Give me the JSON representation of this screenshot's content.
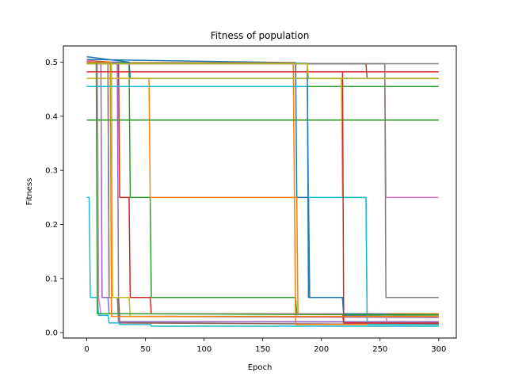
{
  "chart_data": {
    "type": "line",
    "title": "Fitness of population",
    "xlabel": "Epoch",
    "ylabel": "Fitness",
    "xlim": [
      -20,
      315
    ],
    "ylim": [
      -0.01,
      0.53
    ],
    "xticks": [
      0,
      50,
      100,
      150,
      200,
      250,
      300
    ],
    "yticks": [
      0.0,
      0.1,
      0.2,
      0.3,
      0.4,
      0.5
    ],
    "ytick_labels": [
      "0.0",
      "0.1",
      "0.2",
      "0.3",
      "0.4",
      "0.5"
    ],
    "grid": false,
    "legend": "none",
    "series": [
      {
        "color": "#1f77b4",
        "points": [
          [
            0,
            0.505
          ],
          [
            178,
            0.499
          ],
          [
            179,
            0.25
          ],
          [
            189,
            0.25
          ],
          [
            190,
            0.065
          ],
          [
            218,
            0.065
          ],
          [
            219,
            0.032
          ],
          [
            300,
            0.03
          ]
        ]
      },
      {
        "color": "#ff7f0e",
        "points": [
          [
            0,
            0.499
          ],
          [
            176,
            0.499
          ],
          [
            177,
            0.25
          ],
          [
            179,
            0.25
          ],
          [
            180,
            0.035
          ],
          [
            300,
            0.035
          ]
        ]
      },
      {
        "color": "#2ca02c",
        "points": [
          [
            0,
            0.5
          ],
          [
            36,
            0.499
          ],
          [
            37,
            0.25
          ],
          [
            54,
            0.25
          ],
          [
            55,
            0.065
          ],
          [
            178,
            0.065
          ],
          [
            179,
            0.035
          ],
          [
            300,
            0.033
          ]
        ]
      },
      {
        "color": "#d62728",
        "points": [
          [
            0,
            0.503
          ],
          [
            27,
            0.499
          ],
          [
            28,
            0.25
          ],
          [
            36,
            0.25
          ],
          [
            37,
            0.065
          ],
          [
            54,
            0.065
          ],
          [
            55,
            0.035
          ],
          [
            218,
            0.035
          ],
          [
            219,
            0.018
          ],
          [
            300,
            0.018
          ]
        ]
      },
      {
        "color": "#9467bd",
        "points": [
          [
            0,
            0.5
          ],
          [
            26,
            0.5
          ],
          [
            27,
            0.065
          ],
          [
            28,
            0.03
          ],
          [
            300,
            0.028
          ]
        ]
      },
      {
        "color": "#8c564b",
        "points": [
          [
            0,
            0.502
          ],
          [
            18,
            0.5
          ],
          [
            19,
            0.065
          ],
          [
            27,
            0.065
          ],
          [
            28,
            0.018
          ],
          [
            300,
            0.015
          ]
        ]
      },
      {
        "color": "#e377c2",
        "points": [
          [
            0,
            0.503
          ],
          [
            9,
            0.5
          ],
          [
            10,
            0.065
          ],
          [
            12,
            0.035
          ],
          [
            255,
            0.035
          ],
          [
            256,
            0.015
          ],
          [
            300,
            0.015
          ]
        ]
      },
      {
        "color": "#7f7f7f",
        "points": [
          [
            0,
            0.5
          ],
          [
            18,
            0.497
          ],
          [
            19,
            0.065
          ],
          [
            26,
            0.065
          ],
          [
            27,
            0.02
          ],
          [
            300,
            0.02
          ]
        ]
      },
      {
        "color": "#bcbd22",
        "points": [
          [
            0,
            0.499
          ],
          [
            21,
            0.499
          ],
          [
            22,
            0.065
          ],
          [
            36,
            0.065
          ],
          [
            37,
            0.03
          ],
          [
            300,
            0.03
          ]
        ]
      },
      {
        "color": "#17becf",
        "points": [
          [
            0,
            0.25
          ],
          [
            2,
            0.25
          ],
          [
            3,
            0.065
          ],
          [
            9,
            0.065
          ],
          [
            10,
            0.032
          ],
          [
            18,
            0.032
          ],
          [
            19,
            0.018
          ],
          [
            27,
            0.018
          ],
          [
            28,
            0.015
          ],
          [
            54,
            0.015
          ],
          [
            55,
            0.012
          ],
          [
            300,
            0.012
          ]
        ]
      },
      {
        "color": "#1f77b4",
        "points": [
          [
            0,
            0.51
          ],
          [
            36,
            0.5
          ],
          [
            37,
            0.47
          ],
          [
            300,
            0.47
          ]
        ]
      },
      {
        "color": "#ff7f0e",
        "points": [
          [
            0,
            0.47
          ],
          [
            53,
            0.47
          ],
          [
            54,
            0.25
          ],
          [
            177,
            0.25
          ],
          [
            178,
            0.015
          ],
          [
            300,
            0.015
          ]
        ]
      },
      {
        "color": "#2ca02c",
        "points": [
          [
            0,
            0.455
          ],
          [
            300,
            0.455
          ]
        ]
      },
      {
        "color": "#d62728",
        "points": [
          [
            0,
            0.482
          ],
          [
            300,
            0.482
          ]
        ]
      },
      {
        "color": "#9467bd",
        "points": [
          [
            0,
            0.5
          ],
          [
            12,
            0.497
          ],
          [
            13,
            0.065
          ],
          [
            18,
            0.065
          ],
          [
            19,
            0.035
          ],
          [
            27,
            0.035
          ],
          [
            28,
            0.02
          ],
          [
            300,
            0.02
          ]
        ]
      },
      {
        "color": "#8c564b",
        "points": [
          [
            0,
            0.393
          ],
          [
            300,
            0.393
          ]
        ]
      },
      {
        "color": "#e377c2",
        "points": [
          [
            0,
            0.497
          ],
          [
            254,
            0.497
          ],
          [
            255,
            0.25
          ],
          [
            300,
            0.25
          ]
        ]
      },
      {
        "color": "#7f7f7f",
        "points": [
          [
            0,
            0.497
          ],
          [
            254,
            0.497
          ],
          [
            255,
            0.065
          ],
          [
            300,
            0.065
          ]
        ]
      },
      {
        "color": "#bcbd22",
        "points": [
          [
            0,
            0.47
          ],
          [
            217,
            0.47
          ],
          [
            218,
            0.25
          ],
          [
            238,
            0.25
          ],
          [
            239,
            0.033
          ],
          [
            300,
            0.033
          ]
        ]
      },
      {
        "color": "#17becf",
        "points": [
          [
            0,
            0.455
          ],
          [
            188,
            0.455
          ],
          [
            189,
            0.25
          ],
          [
            238,
            0.25
          ],
          [
            239,
            0.015
          ],
          [
            300,
            0.015
          ]
        ]
      },
      {
        "color": "#1f77b4",
        "points": [
          [
            0,
            0.498
          ],
          [
            188,
            0.498
          ],
          [
            189,
            0.065
          ],
          [
            218,
            0.065
          ],
          [
            219,
            0.035
          ],
          [
            300,
            0.033
          ]
        ]
      },
      {
        "color": "#2ca02c",
        "points": [
          [
            0,
            0.393
          ],
          [
            300,
            0.393
          ]
        ]
      },
      {
        "color": "#d62728",
        "points": [
          [
            0,
            0.482
          ],
          [
            218,
            0.482
          ],
          [
            219,
            0.018
          ],
          [
            300,
            0.017
          ]
        ]
      },
      {
        "color": "#8c564b",
        "points": [
          [
            0,
            0.497
          ],
          [
            238,
            0.497
          ],
          [
            239,
            0.47
          ],
          [
            300,
            0.47
          ]
        ]
      },
      {
        "color": "#7f7f7f",
        "points": [
          [
            0,
            0.497
          ],
          [
            300,
            0.497
          ]
        ]
      },
      {
        "color": "#bcbd22",
        "points": [
          [
            0,
            0.497
          ],
          [
            188,
            0.497
          ],
          [
            189,
            0.47
          ],
          [
            300,
            0.47
          ]
        ]
      },
      {
        "color": "#2ca02c",
        "points": [
          [
            0,
            0.5
          ],
          [
            8,
            0.5
          ],
          [
            9,
            0.035
          ],
          [
            300,
            0.033
          ]
        ]
      },
      {
        "color": "#ff7f0e",
        "points": [
          [
            0,
            0.5
          ],
          [
            20,
            0.5
          ],
          [
            21,
            0.03
          ],
          [
            300,
            0.03
          ]
        ]
      }
    ]
  }
}
